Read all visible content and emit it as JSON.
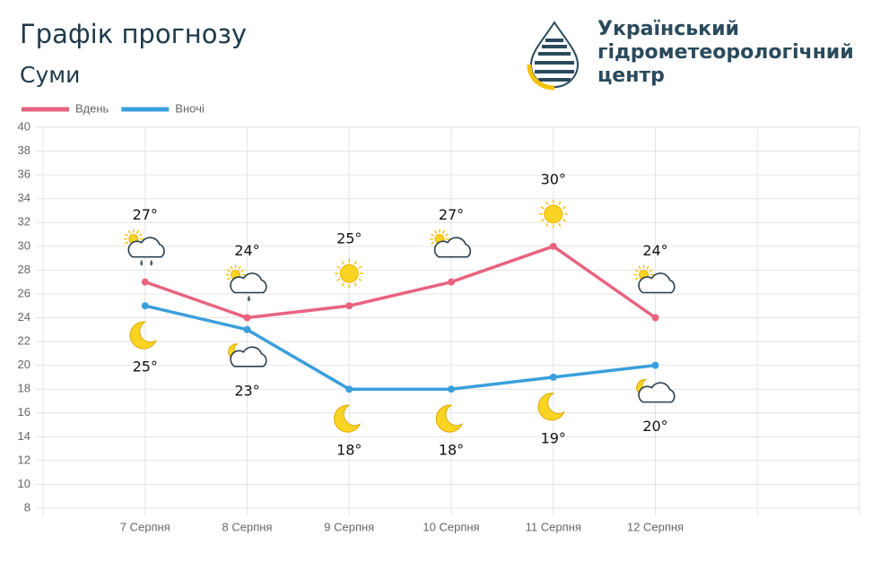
{
  "header": {
    "org": [
      "Український",
      "гідрометеорологічний",
      "центр"
    ]
  },
  "chart_data": {
    "type": "line",
    "title": "Графік прогнозу",
    "subtitle": "Суми",
    "categories": [
      "7 Серпня",
      "8 Серпня",
      "9 Серпня",
      "10 Серпня",
      "11 Серпня",
      "12 Серпня"
    ],
    "series": [
      {
        "name": "Вдень",
        "color": "#e8637f",
        "values": [
          27,
          24,
          25,
          27,
          30,
          24
        ],
        "value_labels": [
          "27°",
          "24°",
          "25°",
          "27°",
          "30°",
          "24°"
        ]
      },
      {
        "name": "Вночі",
        "color": "#3a9fdc",
        "values": [
          25,
          23,
          18,
          18,
          19,
          20
        ],
        "value_labels": [
          "25°",
          "23°",
          "18°",
          "18°",
          "19°",
          "20°"
        ]
      }
    ],
    "ylim": [
      8,
      40
    ],
    "yticks": [
      8,
      10,
      12,
      14,
      16,
      18,
      20,
      22,
      24,
      26,
      28,
      30,
      32,
      34,
      36,
      38,
      40
    ],
    "grid": true,
    "legend": "top-left"
  }
}
